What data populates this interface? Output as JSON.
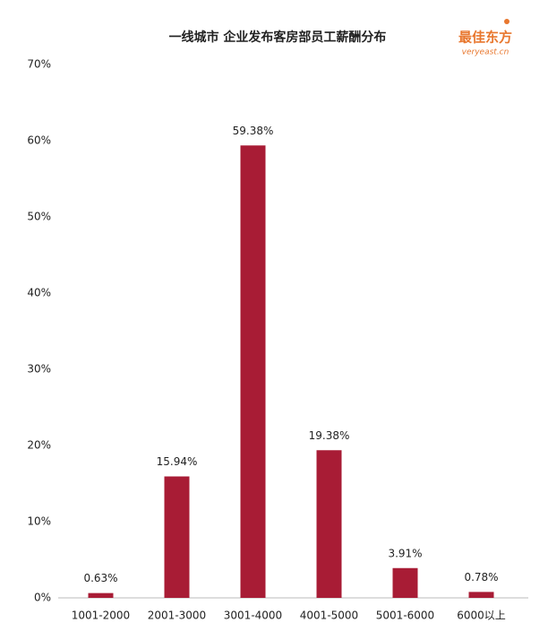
{
  "chart_data": {
    "type": "bar",
    "title": "一线城市 企业发布客房部员工薪酬分布",
    "categories": [
      "1001-2000",
      "2001-3000",
      "3001-4000",
      "4001-5000",
      "5001-6000",
      "6000以上"
    ],
    "values": [
      0.63,
      15.94,
      59.38,
      19.38,
      3.91,
      0.78
    ],
    "value_labels": [
      "0.63%",
      "15.94%",
      "59.38%",
      "19.38%",
      "3.91%",
      "0.78%"
    ],
    "color": "#a81c35",
    "ylim": [
      0,
      70
    ],
    "yticks": [
      {
        "value": 0,
        "label": "0%"
      },
      {
        "value": 10,
        "label": "10%"
      },
      {
        "value": 20,
        "label": "20%"
      },
      {
        "value": 30,
        "label": "30%"
      },
      {
        "value": 40,
        "label": "40%"
      },
      {
        "value": 50,
        "label": "50%"
      },
      {
        "value": 60,
        "label": "60%"
      },
      {
        "value": 70,
        "label": "70%"
      }
    ],
    "grid": false
  },
  "logo": {
    "name": "最佳东方",
    "url": "veryeast.cn"
  }
}
